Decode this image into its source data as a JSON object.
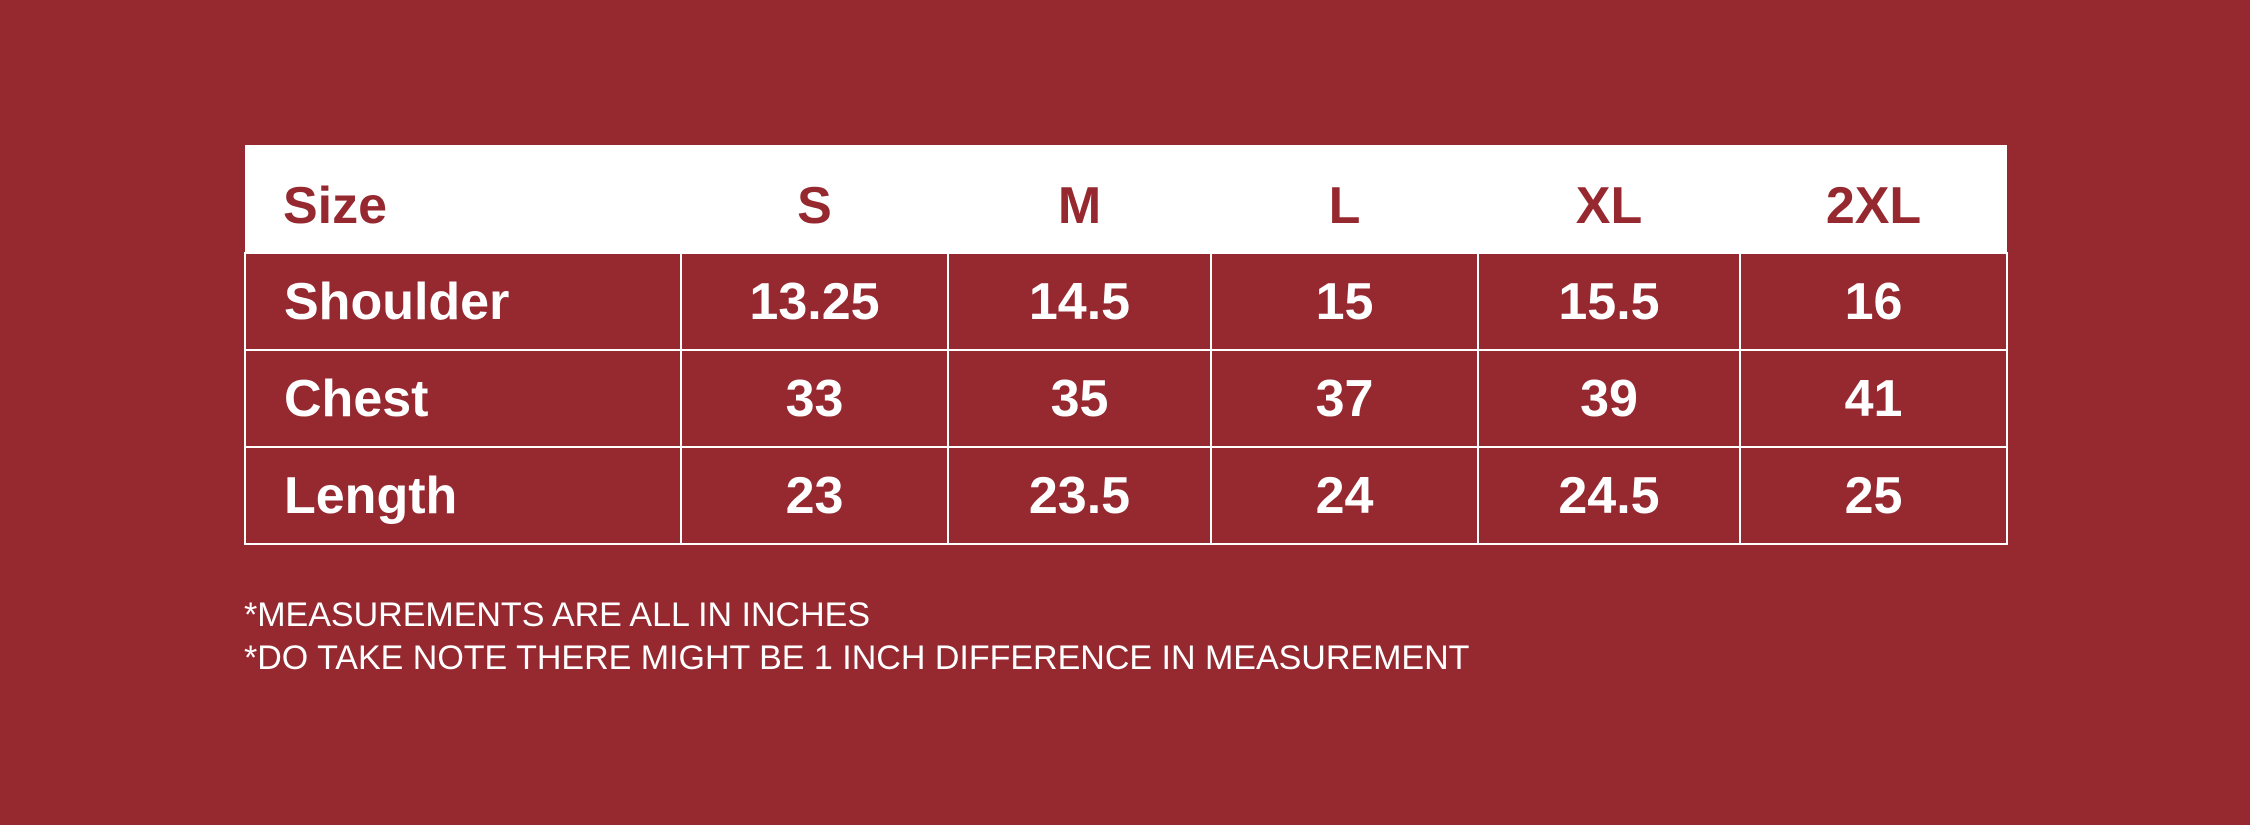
{
  "table": {
    "header": [
      "Size",
      "S",
      "M",
      "L",
      "XL",
      "2XL"
    ],
    "rows": [
      [
        "Shoulder",
        "13.25",
        "14.5",
        "15",
        "15.5",
        "16"
      ],
      [
        "Chest",
        "33",
        "35",
        "37",
        "39",
        "41"
      ],
      [
        "Length",
        "23",
        "23.5",
        "24",
        "24.5",
        "25"
      ]
    ]
  },
  "notes": [
    "*MEASUREMENTS ARE ALL IN INCHES",
    "*DO TAKE NOTE THERE MIGHT BE 1 INCH DIFFERENCE IN MEASUREMENT"
  ]
}
